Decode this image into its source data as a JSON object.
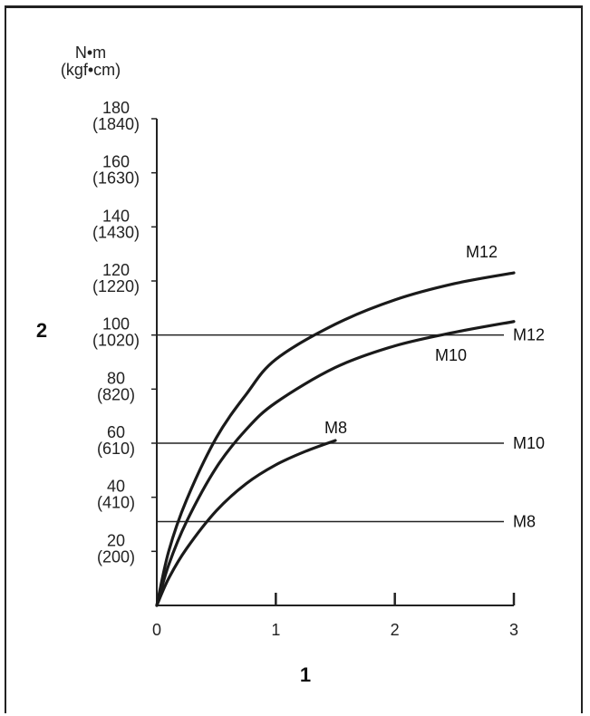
{
  "chart_data": {
    "type": "line",
    "title": "",
    "xlabel": "1",
    "ylabel": "2",
    "y_unit_line1": "N•m",
    "y_unit_line2": "(kgf•cm)",
    "xlim": [
      0,
      3
    ],
    "ylim": [
      0,
      180
    ],
    "x_ticks": [
      {
        "value": 0,
        "label": "0"
      },
      {
        "value": 1,
        "label": "1"
      },
      {
        "value": 2,
        "label": "2"
      },
      {
        "value": 3,
        "label": "3"
      }
    ],
    "y_ticks": [
      {
        "value": 20,
        "label": "20",
        "sub": "(200)"
      },
      {
        "value": 40,
        "label": "40",
        "sub": "(410)"
      },
      {
        "value": 60,
        "label": "60",
        "sub": "(610)"
      },
      {
        "value": 80,
        "label": "80",
        "sub": "(820)"
      },
      {
        "value": 100,
        "label": "100",
        "sub": "(1020)"
      },
      {
        "value": 120,
        "label": "120",
        "sub": "(1220)"
      },
      {
        "value": 140,
        "label": "140",
        "sub": "(1430)"
      },
      {
        "value": 160,
        "label": "160",
        "sub": "(1630)"
      },
      {
        "value": 180,
        "label": "180",
        "sub": "(1840)"
      }
    ],
    "curves": [
      {
        "name": "M12",
        "x": [
          0,
          0.1,
          0.25,
          0.5,
          0.75,
          1.0,
          1.5,
          2.0,
          2.5,
          3.0
        ],
        "y": [
          0,
          20,
          39,
          62,
          78,
          91,
          104,
          113,
          119,
          123
        ]
      },
      {
        "name": "M10",
        "x": [
          0,
          0.1,
          0.25,
          0.5,
          0.75,
          1.0,
          1.5,
          2.0,
          2.5,
          3.0
        ],
        "y": [
          0,
          15,
          31,
          51,
          65,
          75,
          88,
          96,
          101,
          105
        ]
      },
      {
        "name": "M8",
        "x": [
          0,
          0.1,
          0.25,
          0.5,
          0.75,
          1.0,
          1.25,
          1.5
        ],
        "y": [
          0,
          10,
          21,
          35,
          45,
          52,
          57,
          61
        ]
      }
    ],
    "limits": [
      {
        "name": "M12",
        "y": 100
      },
      {
        "name": "M10",
        "y": 60
      },
      {
        "name": "M8",
        "y": 31
      }
    ],
    "grid": false,
    "legend": "none"
  }
}
